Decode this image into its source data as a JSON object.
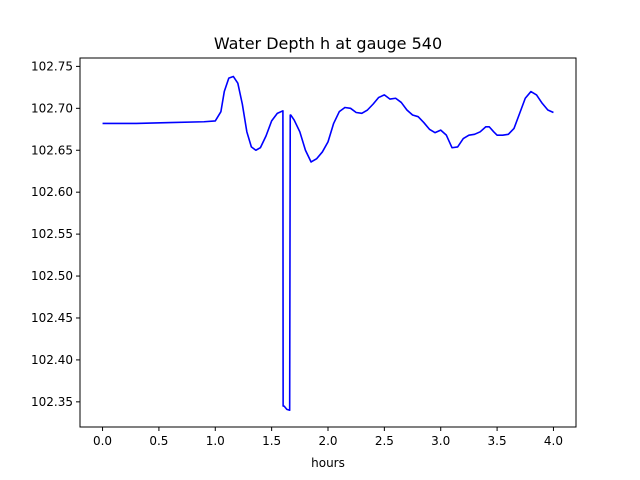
{
  "chart_data": {
    "type": "line",
    "title": "Water Depth h at gauge 540",
    "xlabel": "hours",
    "ylabel": "",
    "xlim": [
      -0.2,
      4.2
    ],
    "ylim": [
      102.32,
      102.76
    ],
    "grid": false,
    "x_ticks": [
      0.0,
      0.5,
      1.0,
      1.5,
      2.0,
      2.5,
      3.0,
      3.5,
      4.0
    ],
    "x_tick_labels": [
      "0.0",
      "0.5",
      "1.0",
      "1.5",
      "2.0",
      "2.5",
      "3.0",
      "3.5",
      "4.0"
    ],
    "y_ticks": [
      102.35,
      102.4,
      102.45,
      102.5,
      102.55,
      102.6,
      102.65,
      102.7,
      102.75
    ],
    "y_tick_labels": [
      "102.35",
      "102.40",
      "102.45",
      "102.50",
      "102.55",
      "102.60",
      "102.65",
      "102.70",
      "102.75"
    ],
    "series": [
      {
        "color": "#0000ff",
        "x": [
          0.0,
          0.3,
          0.6,
          0.9,
          1.0,
          1.05,
          1.08,
          1.12,
          1.16,
          1.2,
          1.24,
          1.28,
          1.32,
          1.36,
          1.4,
          1.45,
          1.5,
          1.55,
          1.6,
          1.602,
          1.61,
          1.635,
          1.66,
          1.665,
          1.67,
          1.7,
          1.75,
          1.8,
          1.85,
          1.9,
          1.95,
          2.0,
          2.05,
          2.1,
          2.15,
          2.2,
          2.25,
          2.3,
          2.35,
          2.4,
          2.45,
          2.5,
          2.55,
          2.6,
          2.65,
          2.7,
          2.75,
          2.8,
          2.85,
          2.9,
          2.95,
          3.0,
          3.05,
          3.1,
          3.15,
          3.2,
          3.25,
          3.3,
          3.35,
          3.4,
          3.43,
          3.47,
          3.5,
          3.55,
          3.6,
          3.65,
          3.7,
          3.75,
          3.8,
          3.85,
          3.9,
          3.95,
          4.0
        ],
        "y": [
          102.682,
          102.682,
          102.683,
          102.684,
          102.685,
          102.696,
          102.72,
          102.736,
          102.738,
          102.73,
          102.705,
          102.672,
          102.654,
          102.65,
          102.653,
          102.667,
          102.685,
          102.694,
          102.697,
          102.345,
          102.345,
          102.341,
          102.34,
          102.692,
          102.692,
          102.686,
          102.672,
          102.65,
          102.636,
          102.64,
          102.648,
          102.66,
          102.682,
          102.696,
          102.701,
          102.7,
          102.695,
          102.694,
          102.698,
          102.705,
          102.713,
          102.716,
          102.711,
          102.712,
          102.707,
          102.698,
          102.692,
          102.69,
          102.683,
          102.675,
          102.671,
          102.674,
          102.668,
          102.653,
          102.654,
          102.664,
          102.668,
          102.669,
          102.672,
          102.678,
          102.678,
          102.672,
          102.668,
          102.668,
          102.669,
          102.676,
          102.694,
          102.712,
          102.72,
          102.716,
          102.706,
          102.698,
          102.695
        ]
      }
    ]
  }
}
